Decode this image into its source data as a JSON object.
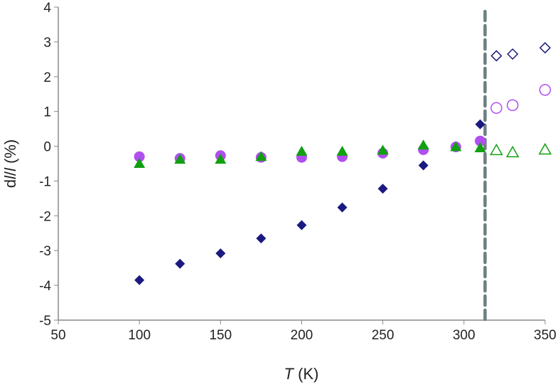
{
  "chart_data": {
    "type": "scatter",
    "xlabel": {
      "italic": "T",
      "rest": " (K)"
    },
    "ylabel": {
      "pre": "d",
      "italic1": "l",
      "mid": "/",
      "italic2": "l",
      "rest": " (%)"
    },
    "xlim": [
      50,
      350
    ],
    "ylim": [
      -5,
      4
    ],
    "xticks": [
      50,
      100,
      150,
      200,
      250,
      300,
      350
    ],
    "yticks": [
      -5,
      -4,
      -3,
      -2,
      -1,
      0,
      1,
      2,
      3,
      4
    ],
    "grid": false,
    "vline": {
      "x": 313,
      "color": "#6b7f80",
      "style": "dashed"
    },
    "series": [
      {
        "marker": "diamond",
        "filled": true,
        "color": "#1a1a80",
        "x": [
          100,
          125,
          150,
          175,
          200,
          225,
          250,
          275,
          310
        ],
        "y": [
          -3.85,
          -3.38,
          -3.08,
          -2.65,
          -2.27,
          -1.76,
          -1.22,
          -0.55,
          0.63
        ]
      },
      {
        "marker": "circle",
        "filled": true,
        "color": "#b04ff0",
        "x": [
          100,
          125,
          150,
          175,
          200,
          225,
          250,
          275,
          295,
          310
        ],
        "y": [
          -0.3,
          -0.35,
          -0.27,
          -0.32,
          -0.32,
          -0.3,
          -0.2,
          -0.1,
          -0.02,
          0.15
        ]
      },
      {
        "marker": "triangle",
        "filled": true,
        "color": "#10a010",
        "x": [
          100,
          125,
          150,
          175,
          200,
          225,
          250,
          275,
          295,
          310
        ],
        "y": [
          -0.5,
          -0.38,
          -0.38,
          -0.3,
          -0.15,
          -0.15,
          -0.12,
          0.03,
          -0.02,
          -0.05
        ]
      },
      {
        "marker": "diamond",
        "filled": false,
        "color": "#1a1a80",
        "x": [
          320,
          330,
          350
        ],
        "y": [
          2.6,
          2.65,
          2.83
        ]
      },
      {
        "marker": "circle",
        "filled": false,
        "color": "#b04ff0",
        "x": [
          320,
          330,
          350
        ],
        "y": [
          1.1,
          1.18,
          1.62
        ]
      },
      {
        "marker": "triangle",
        "filled": false,
        "color": "#10a010",
        "x": [
          320,
          330,
          350
        ],
        "y": [
          -0.12,
          -0.18,
          -0.1
        ]
      }
    ]
  }
}
